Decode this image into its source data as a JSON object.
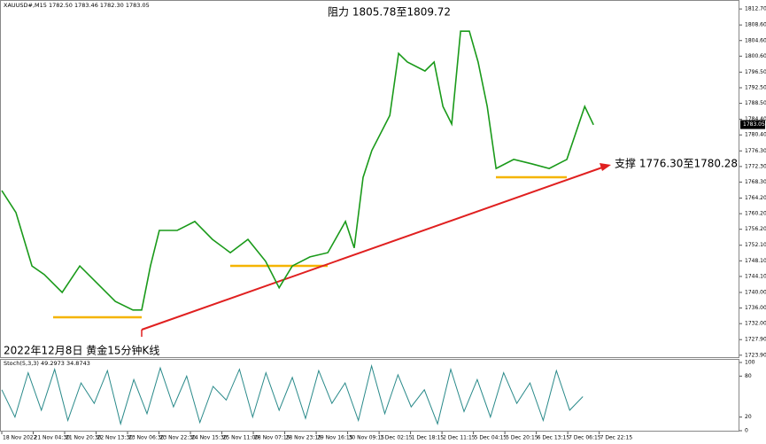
{
  "chart_data": [
    {
      "type": "line",
      "title": "XAUUSD#,M15 1782.50 1783.46 1782.30 1783.05",
      "annotations": [
        "阻力 1805.78至1809.72",
        "支撑 1776.30至1780.28",
        "2022年12月8日 黄金15分钟K线"
      ],
      "series": [
        {
          "name": "XAUUSD#",
          "color": "#1a9a1a",
          "x": [
            0,
            0.45,
            0.96,
            1.35,
            1.92,
            2.48,
            3.04,
            3.61,
            4.17,
            4.45,
            4.73,
            5.01,
            5.58,
            6.14,
            6.7,
            7.27,
            7.83,
            8.39,
            8.82,
            9.24,
            9.8,
            10.37,
            10.93,
            11.21,
            11.49,
            11.77,
            12.34,
            12.62,
            12.9,
            13.46,
            13.75,
            14.03,
            14.31,
            14.59,
            14.87,
            15.15,
            15.44,
            15.72,
            16.28,
            16.85,
            17.41,
            17.97,
            18.54,
            18.82
          ],
          "values": [
            1766.1,
            1760.5,
            1746.8,
            1744.6,
            1740.0,
            1746.8,
            1742.3,
            1737.7,
            1735.5,
            1735.5,
            1746.8,
            1755.9,
            1755.9,
            1758.2,
            1753.6,
            1750.2,
            1753.6,
            1748.0,
            1741.2,
            1746.8,
            1749.1,
            1750.2,
            1758.2,
            1751.4,
            1769.5,
            1776.4,
            1785.4,
            1801.3,
            1799.1,
            1796.8,
            1799.1,
            1787.7,
            1783.2,
            1807.0,
            1807.0,
            1799.1,
            1787.7,
            1771.8,
            1774.1,
            1773.0,
            1771.8,
            1774.1,
            1787.7,
            1783.0
          ]
        }
      ],
      "last_price": {
        "value": 1783.05,
        "label": "1783.05"
      },
      "xlim": [
        0,
        23.46
      ],
      "xticks": [
        {
          "value": 0,
          "label": "18 Nov 2022"
        },
        {
          "value": 1,
          "label": "21 Nov 04:30"
        },
        {
          "value": 2,
          "label": "21 Nov 20:30"
        },
        {
          "value": 3,
          "label": "22 Nov 13:30"
        },
        {
          "value": 4,
          "label": "23 Nov 06:30"
        },
        {
          "value": 5,
          "label": "23 Nov 22:30"
        },
        {
          "value": 6,
          "label": "24 Nov 15:30"
        },
        {
          "value": 7,
          "label": "25 Nov 11:00"
        },
        {
          "value": 8,
          "label": "28 Nov 07:15"
        },
        {
          "value": 9,
          "label": "28 Nov 23:15"
        },
        {
          "value": 10,
          "label": "29 Nov 16:15"
        },
        {
          "value": 11,
          "label": "30 Nov 09:15"
        },
        {
          "value": 12,
          "label": "1 Dec 02:15"
        },
        {
          "value": 13,
          "label": "1 Dec 18:15"
        },
        {
          "value": 14,
          "label": "2 Dec 11:15"
        },
        {
          "value": 15,
          "label": "5 Dec 04:15"
        },
        {
          "value": 16,
          "label": "5 Dec 20:15"
        },
        {
          "value": 17,
          "label": "6 Dec 13:15"
        },
        {
          "value": 18,
          "label": "7 Dec 06:15"
        },
        {
          "value": 19,
          "label": "7 Dec 22:15"
        }
      ],
      "ylim": [
        1723.4,
        1815.0
      ],
      "yticks": [
        {
          "value": 1812.7,
          "label": "1812.70"
        },
        {
          "value": 1808.6,
          "label": "1808.60"
        },
        {
          "value": 1804.6,
          "label": "1804.60"
        },
        {
          "value": 1800.6,
          "label": "1800.60"
        },
        {
          "value": 1796.5,
          "label": "1796.50"
        },
        {
          "value": 1792.5,
          "label": "1792.50"
        },
        {
          "value": 1788.5,
          "label": "1788.50"
        },
        {
          "value": 1784.4,
          "label": "1784.40"
        },
        {
          "value": 1780.4,
          "label": "1780.40"
        },
        {
          "value": 1776.3,
          "label": "1776.30"
        },
        {
          "value": 1772.3,
          "label": "1772.30"
        },
        {
          "value": 1768.3,
          "label": "1768.30"
        },
        {
          "value": 1764.2,
          "label": "1764.20"
        },
        {
          "value": 1760.2,
          "label": "1760.20"
        },
        {
          "value": 1756.2,
          "label": "1756.20"
        },
        {
          "value": 1752.1,
          "label": "1752.10"
        },
        {
          "value": 1748.1,
          "label": "1748.10"
        },
        {
          "value": 1744.1,
          "label": "1744.10"
        },
        {
          "value": 1740,
          "label": "1740.00"
        },
        {
          "value": 1736,
          "label": "1736.00"
        },
        {
          "value": 1732,
          "label": "1732.00"
        },
        {
          "value": 1727.9,
          "label": "1727.90"
        },
        {
          "value": 1723.9,
          "label": "1723.90"
        }
      ]
    },
    {
      "type": "line",
      "title": "Stoch(5,3,3) 49.2973 34.8743",
      "series": [
        {
          "name": "Stoch",
          "color": "#2a8a8a",
          "x": [
            0,
            0.42,
            0.84,
            1.26,
            1.68,
            2.1,
            2.52,
            2.94,
            3.36,
            3.78,
            4.2,
            4.62,
            5.04,
            5.46,
            5.88,
            6.3,
            6.72,
            7.14,
            7.56,
            7.98,
            8.4,
            8.82,
            9.24,
            9.66,
            10.08,
            10.5,
            10.92,
            11.34,
            11.76,
            12.18,
            12.6,
            13.02,
            13.44,
            13.86,
            14.28,
            14.7,
            15.12,
            15.54,
            15.96,
            16.38,
            16.8,
            17.22,
            17.64,
            18.06,
            18.48
          ],
          "values": [
            60,
            20,
            85,
            30,
            90,
            15,
            70,
            40,
            88,
            10,
            75,
            25,
            92,
            35,
            80,
            12,
            65,
            45,
            90,
            20,
            85,
            30,
            78,
            18,
            88,
            40,
            70,
            15,
            95,
            25,
            82,
            35,
            60,
            10,
            90,
            28,
            75,
            20,
            85,
            40,
            70,
            15,
            88,
            30,
            50
          ]
        }
      ],
      "xlim": [
        0,
        23.46
      ],
      "ylim": [
        -1.3,
        105.2
      ],
      "yticks": [
        100,
        80,
        20,
        0
      ]
    }
  ]
}
